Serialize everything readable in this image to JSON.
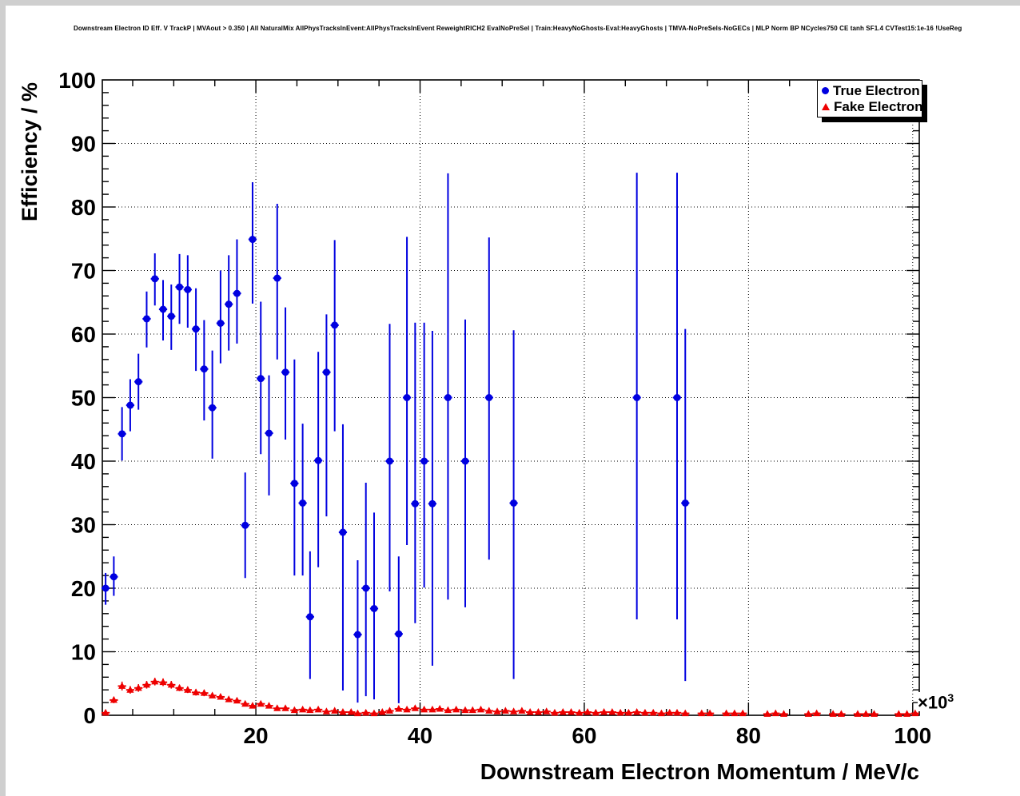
{
  "title": "Downstream Electron ID Eff. V TrackP | MVAout > 0.350 | All NaturalMix AllPhysTracksInEvent:AllPhysTracksInEvent ReweightRICH2 EvalNoPreSel | Train:HeavyNoGhosts-Eval:HeavyGhosts | TMVA-NoPreSels-NoGECs | MLP Norm BP NCycles750 CE tanh SF1.4 CVTest15:1e-16 !UseReg",
  "legend": {
    "entries": [
      {
        "label": "True Electron",
        "marker": "circle-icon",
        "color": "#0000e0"
      },
      {
        "label": "Fake Electron",
        "marker": "triangle-icon",
        "color": "#ee0000"
      }
    ]
  },
  "axes": {
    "x": {
      "title": "Downstream Electron Momentum / MeV/c",
      "tick_labels": [
        "20",
        "40",
        "60",
        "80",
        "100"
      ],
      "ticks": [
        20,
        40,
        60,
        80,
        100
      ],
      "minor_step": 5,
      "exponent_base": "×10",
      "exponent_power": "3"
    },
    "y": {
      "title": "Efficiency / %",
      "tick_labels": [
        "0",
        "10",
        "20",
        "30",
        "40",
        "50",
        "60",
        "70",
        "80",
        "90",
        "100"
      ],
      "ticks": [
        0,
        10,
        20,
        30,
        40,
        50,
        60,
        70,
        80,
        90,
        100
      ],
      "minor_step": 2
    }
  },
  "chart_data": {
    "type": "scatter",
    "title": "Downstream Electron ID Eff. V TrackP",
    "xlabel": "Downstream Electron Momentum / MeV/c (×10³)",
    "ylabel": "Efficiency / %",
    "x_range": [
      1.3,
      100.8
    ],
    "y_range": [
      0,
      100
    ],
    "grid": "dotted-major",
    "legend_position": "top-right",
    "x_bin_halfwidth": 0.5,
    "series": [
      {
        "name": "True Electron",
        "marker": "circle",
        "color": "#0000e0",
        "points_format": [
          "momentum_e3",
          "efficiency_pct",
          "err_low",
          "err_high"
        ],
        "points": [
          [
            1.7,
            20.0,
            2.6,
            2.4
          ],
          [
            2.7,
            21.8,
            3.0,
            3.2
          ],
          [
            3.7,
            44.3,
            4.2,
            4.2
          ],
          [
            4.7,
            48.8,
            4.1,
            4.1
          ],
          [
            5.7,
            52.5,
            4.4,
            4.4
          ],
          [
            6.7,
            62.4,
            4.5,
            4.3
          ],
          [
            7.7,
            68.7,
            4.2,
            4.0
          ],
          [
            8.7,
            63.9,
            4.9,
            4.6
          ],
          [
            9.7,
            62.8,
            5.3,
            5.0
          ],
          [
            10.7,
            67.4,
            5.8,
            5.2
          ],
          [
            11.7,
            67.0,
            6.0,
            5.4
          ],
          [
            12.7,
            60.8,
            6.6,
            6.4
          ],
          [
            13.7,
            54.5,
            8.1,
            7.7
          ],
          [
            14.7,
            48.4,
            8.0,
            9.0
          ],
          [
            15.7,
            61.7,
            6.3,
            8.3
          ],
          [
            16.7,
            64.7,
            7.3,
            7.7
          ],
          [
            17.7,
            66.4,
            7.9,
            8.5
          ],
          [
            18.7,
            29.9,
            8.3,
            8.3
          ],
          [
            19.6,
            74.9,
            10.1,
            9.0
          ],
          [
            20.6,
            53.0,
            11.9,
            12.1
          ],
          [
            21.6,
            44.4,
            9.8,
            9.1
          ],
          [
            22.6,
            68.8,
            12.8,
            11.7
          ],
          [
            23.6,
            54.0,
            10.6,
            10.2
          ],
          [
            24.7,
            36.5,
            14.5,
            19.5
          ],
          [
            25.7,
            33.4,
            11.4,
            12.5
          ],
          [
            26.6,
            15.5,
            9.8,
            10.3
          ],
          [
            27.6,
            40.1,
            16.8,
            17.1
          ],
          [
            28.6,
            54.0,
            22.7,
            9.1
          ],
          [
            29.6,
            61.4,
            16.7,
            13.4
          ],
          [
            30.6,
            28.8,
            24.9,
            17.0
          ],
          [
            32.4,
            12.7,
            10.7,
            11.7
          ],
          [
            33.4,
            20.0,
            17.0,
            16.6
          ],
          [
            34.4,
            16.8,
            14.3,
            15.1
          ],
          [
            36.3,
            40.0,
            20.5,
            21.6
          ],
          [
            37.4,
            12.8,
            10.9,
            12.2
          ],
          [
            38.4,
            50.0,
            23.2,
            25.3
          ],
          [
            39.4,
            33.3,
            18.8,
            28.5
          ],
          [
            40.5,
            40.0,
            19.9,
            21.8
          ],
          [
            41.5,
            33.3,
            25.5,
            27.2
          ],
          [
            43.4,
            50.0,
            31.8,
            35.3
          ],
          [
            45.5,
            40.0,
            23.0,
            22.3
          ],
          [
            48.4,
            50.0,
            25.5,
            25.2
          ],
          [
            51.4,
            33.4,
            27.7,
            27.2
          ],
          [
            66.4,
            50.0,
            34.9,
            35.4
          ],
          [
            71.3,
            50.0,
            34.9,
            35.4
          ],
          [
            72.3,
            33.4,
            28.0,
            27.4
          ]
        ]
      },
      {
        "name": "Fake Electron",
        "marker": "triangle",
        "color": "#ee0000",
        "points_format": [
          "momentum_e3",
          "efficiency_pct",
          "err"
        ],
        "points": [
          [
            1.7,
            0.4,
            0.3
          ],
          [
            2.7,
            2.4,
            0.5
          ],
          [
            3.7,
            4.6,
            0.7
          ],
          [
            4.7,
            4.0,
            0.6
          ],
          [
            5.7,
            4.3,
            0.6
          ],
          [
            6.7,
            4.8,
            0.6
          ],
          [
            7.7,
            5.3,
            0.6
          ],
          [
            8.7,
            5.2,
            0.6
          ],
          [
            9.7,
            4.8,
            0.6
          ],
          [
            10.7,
            4.3,
            0.5
          ],
          [
            11.7,
            4.0,
            0.5
          ],
          [
            12.7,
            3.6,
            0.5
          ],
          [
            13.7,
            3.5,
            0.5
          ],
          [
            14.7,
            3.1,
            0.4
          ],
          [
            15.7,
            2.9,
            0.4
          ],
          [
            16.7,
            2.5,
            0.4
          ],
          [
            17.7,
            2.3,
            0.4
          ],
          [
            18.7,
            1.8,
            0.3
          ],
          [
            19.6,
            1.5,
            0.3
          ],
          [
            20.6,
            1.8,
            0.3
          ],
          [
            21.6,
            1.5,
            0.3
          ],
          [
            22.6,
            1.1,
            0.3
          ],
          [
            23.6,
            1.1,
            0.3
          ],
          [
            24.7,
            0.8,
            0.2
          ],
          [
            25.7,
            0.9,
            0.2
          ],
          [
            26.6,
            0.8,
            0.2
          ],
          [
            27.6,
            0.9,
            0.2
          ],
          [
            28.6,
            0.6,
            0.2
          ],
          [
            29.6,
            0.7,
            0.2
          ],
          [
            30.6,
            0.5,
            0.2
          ],
          [
            31.6,
            0.5,
            0.2
          ],
          [
            32.4,
            0.3,
            0.1
          ],
          [
            33.4,
            0.4,
            0.1
          ],
          [
            34.4,
            0.3,
            0.1
          ],
          [
            35.4,
            0.5,
            0.2
          ],
          [
            36.3,
            0.7,
            0.2
          ],
          [
            37.4,
            1.0,
            0.2
          ],
          [
            38.4,
            0.9,
            0.2
          ],
          [
            39.4,
            1.1,
            0.2
          ],
          [
            40.5,
            0.9,
            0.2
          ],
          [
            41.5,
            0.9,
            0.2
          ],
          [
            42.4,
            1.0,
            0.2
          ],
          [
            43.4,
            0.8,
            0.2
          ],
          [
            44.4,
            0.9,
            0.2
          ],
          [
            45.5,
            0.8,
            0.2
          ],
          [
            46.4,
            0.8,
            0.2
          ],
          [
            47.4,
            0.9,
            0.2
          ],
          [
            48.4,
            0.7,
            0.2
          ],
          [
            49.4,
            0.6,
            0.1
          ],
          [
            50.4,
            0.7,
            0.2
          ],
          [
            51.4,
            0.6,
            0.1
          ],
          [
            52.4,
            0.7,
            0.2
          ],
          [
            53.4,
            0.5,
            0.1
          ],
          [
            54.4,
            0.5,
            0.1
          ],
          [
            55.4,
            0.6,
            0.1
          ],
          [
            56.4,
            0.4,
            0.1
          ],
          [
            57.4,
            0.5,
            0.1
          ],
          [
            58.4,
            0.5,
            0.1
          ],
          [
            59.4,
            0.4,
            0.1
          ],
          [
            60.4,
            0.5,
            0.1
          ],
          [
            61.4,
            0.4,
            0.1
          ],
          [
            62.4,
            0.5,
            0.1
          ],
          [
            63.4,
            0.5,
            0.1
          ],
          [
            64.4,
            0.4,
            0.1
          ],
          [
            65.4,
            0.4,
            0.1
          ],
          [
            66.4,
            0.5,
            0.1
          ],
          [
            67.4,
            0.4,
            0.1
          ],
          [
            68.4,
            0.4,
            0.1
          ],
          [
            69.4,
            0.3,
            0.1
          ],
          [
            70.4,
            0.4,
            0.1
          ],
          [
            71.3,
            0.4,
            0.1
          ],
          [
            72.3,
            0.3,
            0.1
          ],
          [
            74.3,
            0.3,
            0.1
          ],
          [
            75.3,
            0.3,
            0.1
          ],
          [
            77.3,
            0.3,
            0.1
          ],
          [
            78.3,
            0.3,
            0.1
          ],
          [
            79.3,
            0.3,
            0.1
          ],
          [
            82.3,
            0.2,
            0.1
          ],
          [
            83.3,
            0.3,
            0.1
          ],
          [
            84.3,
            0.2,
            0.1
          ],
          [
            87.3,
            0.2,
            0.1
          ],
          [
            88.3,
            0.3,
            0.1
          ],
          [
            90.3,
            0.2,
            0.1
          ],
          [
            91.3,
            0.2,
            0.1
          ],
          [
            93.3,
            0.2,
            0.1
          ],
          [
            94.3,
            0.2,
            0.1
          ],
          [
            95.3,
            0.2,
            0.1
          ],
          [
            98.3,
            0.2,
            0.1
          ],
          [
            99.3,
            0.2,
            0.1
          ],
          [
            100.3,
            0.3,
            0.1
          ]
        ]
      }
    ]
  }
}
